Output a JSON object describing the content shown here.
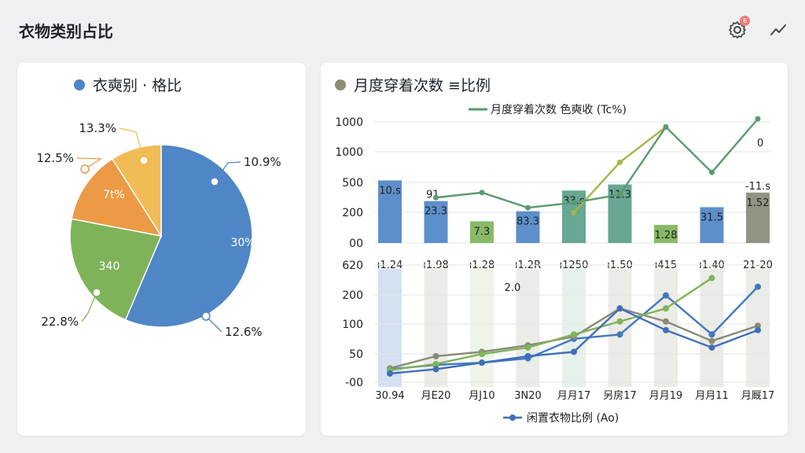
{
  "header": {
    "title": "衣物类别占比",
    "settings_badge": "6"
  },
  "icons": {
    "settings": "gear-icon",
    "trend": "trend-line-icon"
  },
  "colors": {
    "blue": "#4f86c6",
    "green": "#7fb35a",
    "orange": "#ec9a45",
    "yellow": "#f1bc56",
    "teal": "#5aa08a",
    "olive": "#8a8a78",
    "gray_legend": "#8c8c7a",
    "line_green": "#5a9a6e"
  },
  "chart_data": [
    {
      "type": "pie",
      "title": "衣奭别 · 格比",
      "slices": [
        {
          "label": "30%",
          "value": 56.4,
          "callout": "10.9%",
          "callout_bottom": "12.6%"
        },
        {
          "label": "340",
          "value": 21.6,
          "callout": "22.8%"
        },
        {
          "label": "7t%",
          "value": 13.0,
          "callout": "12.5%"
        },
        {
          "label": "",
          "value": 9.0,
          "callout": "13.3%"
        }
      ]
    },
    {
      "type": "bar",
      "title": "月度穿着次数 ≡比例",
      "legend_top": "月度穿着次数 色奭收 (Tc%)",
      "legend_bottom": "闲置衣物比例 (Ao)",
      "top_panel": {
        "y_ticks": [
          "1000",
          "1000",
          "500",
          "200",
          "00"
        ],
        "ylim": [
          0,
          1200
        ],
        "categories": [
          "ı1.24",
          "ı1.98",
          "ı1.28",
          "ı1.2R",
          "ı1250",
          "ı1.50",
          "ı415",
          "ı1.40",
          "21-20"
        ],
        "bars": [
          620,
          415,
          215,
          315,
          520,
          580,
          180,
          355,
          500
        ],
        "bar_labels": [
          "10.s",
          "23.3",
          "7.3",
          "83.3",
          "33.s",
          "11.3",
          "1.28",
          "31.5",
          "1.52"
        ],
        "extra_labels": [
          "",
          "91..",
          "",
          "",
          "",
          "",
          "",
          "",
          "-11.s"
        ],
        "line": [
          null,
          450,
          500,
          350,
          400,
          480,
          1150,
          700,
          1230
        ],
        "line2": [
          null,
          null,
          null,
          null,
          300,
          800,
          1150,
          null,
          null
        ],
        "end_label": "0"
      },
      "bottom_panel": {
        "y_ticks": [
          "620",
          "200",
          "100",
          "50",
          "-00"
        ],
        "ylim": [
          -10,
          260
        ],
        "x_labels": [
          "30.94",
          "月E20",
          "月J10",
          "3N20",
          "月月17",
          "另房17",
          "月月19",
          "月月11",
          "月厩17"
        ],
        "note": "2.0",
        "series": [
          {
            "name": "",
            "values": [
              20,
              30,
              35,
              45,
              90,
              100,
              190,
              100,
              210
            ]
          },
          {
            "name": "",
            "values": [
              22,
              50,
              60,
              75,
              95,
              160,
              130,
              85,
              120
            ]
          },
          {
            "name": "",
            "values": [
              18,
              32,
              55,
              70,
              100,
              130,
              160,
              230,
              null
            ]
          },
          {
            "name": "",
            "values": [
              10,
              20,
              35,
              50,
              60,
              160,
              110,
              70,
              110
            ]
          }
        ]
      }
    }
  ]
}
